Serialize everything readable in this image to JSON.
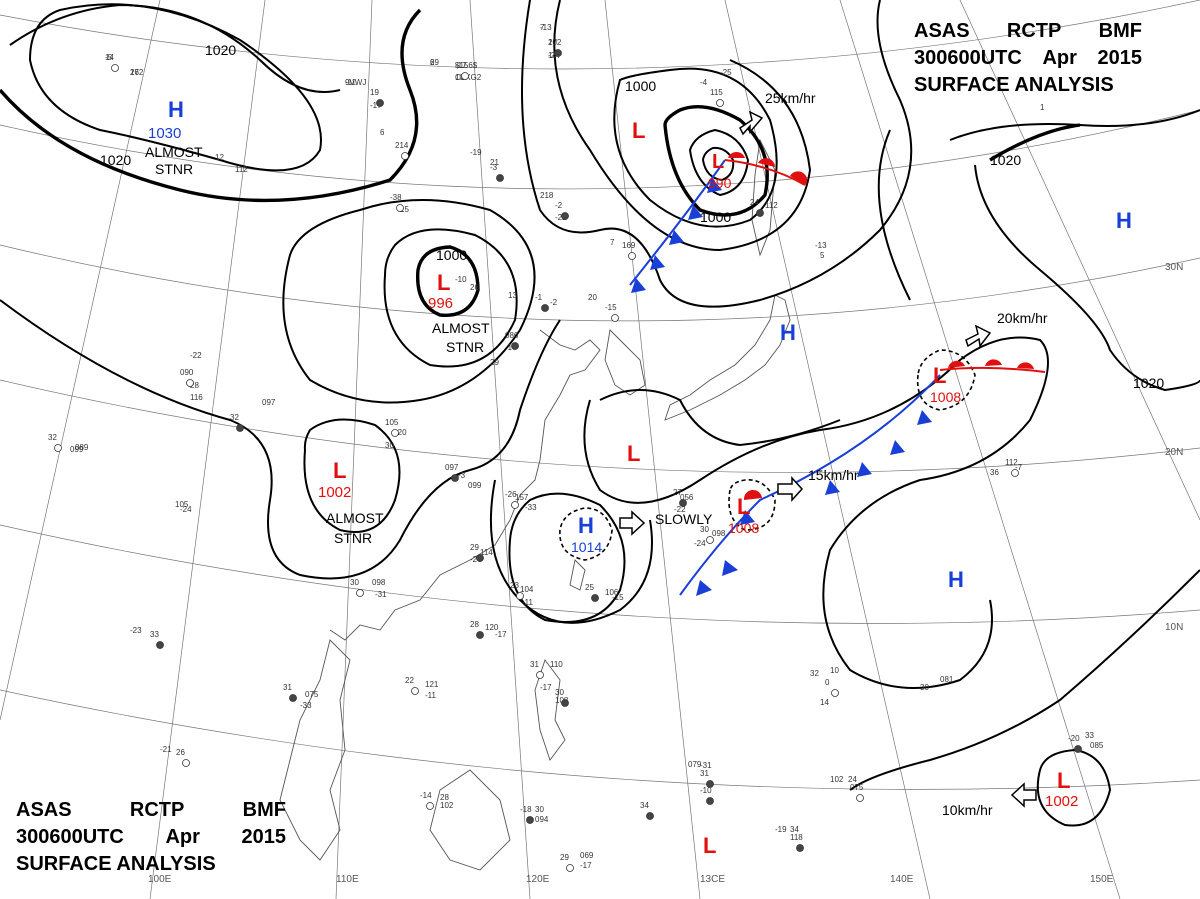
{
  "header": {
    "line1": [
      "ASAS",
      "RCTP",
      "BMF"
    ],
    "line2": [
      "300600UTC",
      "Apr",
      "2015"
    ],
    "line3": "SURFACE ANALYSIS"
  },
  "colors": {
    "high": "#1a3fd6",
    "low": "#e01010",
    "front_cold": "#1a3fd6",
    "front_warm": "#e01010",
    "isobar": "#000000"
  },
  "isobar_labels": {
    "a": "1020",
    "b": "1020",
    "c": "1000",
    "d": "1000",
    "e": "1000",
    "f": "1020",
    "g": "1020"
  },
  "systems": [
    {
      "id": "h1",
      "type": "H",
      "pressure": "1030",
      "note": "ALMOST STNR"
    },
    {
      "id": "l1",
      "type": "L",
      "pressure": "990"
    },
    {
      "id": "l2",
      "type": "L",
      "pressure": "996",
      "note": "ALMOST STNR"
    },
    {
      "id": "l3",
      "type": "L",
      "pressure": "1002",
      "note": "ALMOST STNR"
    },
    {
      "id": "h2",
      "type": "H",
      "pressure": "1014"
    },
    {
      "id": "l4",
      "type": "L",
      "pressure": "1008"
    },
    {
      "id": "l5",
      "type": "L",
      "pressure": "1008"
    },
    {
      "id": "l6",
      "type": "L",
      "pressure": "1002"
    }
  ],
  "labels": {
    "h": "H",
    "l": "L",
    "almost": "ALMOST",
    "stnr": "STNR",
    "m1_almost": "ALMOST",
    "m1_stnr": "STNR",
    "m2_almost": "ALMOST",
    "m2_stnr": "STNR",
    "m3_almost": "ALMOST",
    "m3_stnr": "STNR",
    "move_l1": "25km/hr",
    "move_l4": "15km/hr",
    "move_l5": "20km/hr",
    "move_l6": "10km/hr",
    "move_h2": "SLOWLY"
  },
  "longitudes": [
    "100E",
    "110E",
    "120E",
    "13CE",
    "140E",
    "150E"
  ],
  "latitudes": [
    "30N",
    "20N",
    "10N"
  ],
  "stations": [
    "14",
    "262",
    "7",
    "102",
    "-2",
    "6",
    "-17",
    "10",
    "-11",
    "19",
    "-17",
    "6",
    "214",
    "-19",
    "21",
    "-3",
    "12",
    "112",
    "-38",
    "15",
    "218",
    "-2",
    "-22",
    "7",
    "169",
    "-13",
    "5",
    "24",
    "112",
    "-4",
    "115",
    "-25",
    "13",
    "-1",
    "-2",
    "20",
    "-15",
    "-10",
    "26",
    "086",
    "-17",
    "29",
    "105",
    "-20",
    "30",
    "097",
    "-3",
    "099",
    "-26",
    "157",
    "-33",
    "27",
    "056",
    "-22",
    "30",
    "098",
    "-24",
    "29",
    "114",
    "-26",
    "23",
    "104",
    "-11",
    "25",
    "106",
    "-15",
    "30",
    "098",
    "-31",
    "28",
    "120",
    "-17",
    "22",
    "121",
    "-11",
    "31",
    "075",
    "-33",
    "31",
    "110",
    "-17",
    "30",
    "108",
    "-21",
    "26",
    "079",
    "-31",
    "31",
    "102",
    "24",
    "075",
    "-19",
    "34",
    "118",
    "32",
    "10",
    "0",
    "30",
    "081",
    "-20",
    "33",
    "085",
    "-14",
    "28",
    "102",
    "-18",
    "30",
    "094",
    "29",
    "069",
    "-17",
    "34",
    "105",
    "-24",
    "32",
    "099",
    "-23",
    "33",
    "089",
    "-22",
    "090",
    "28",
    "116",
    "32",
    "097",
    "36",
    "112",
    "-7",
    "14",
    "-10",
    "1",
    "-5",
    "17",
    "-13",
    "27",
    "147",
    "29",
    "$156$",
    "C6XG2",
    "9VWJ"
  ]
}
